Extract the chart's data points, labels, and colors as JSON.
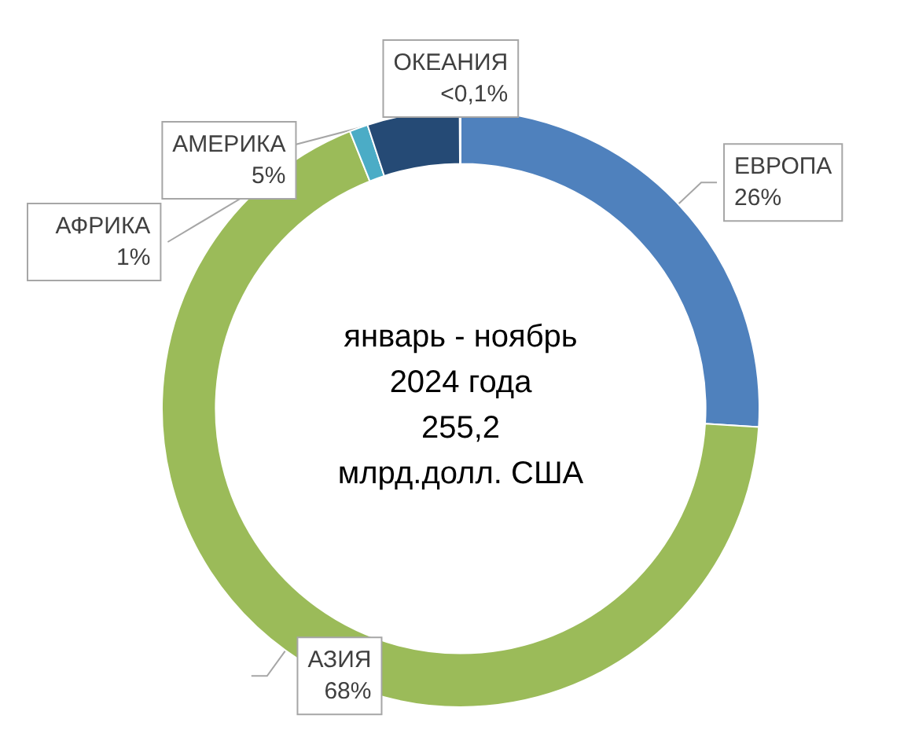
{
  "chart_data": {
    "type": "donut",
    "categories": [
      "ЕВРОПА",
      "АЗИЯ",
      "АФРИКА",
      "АМЕРИКА",
      "ОКЕАНИЯ"
    ],
    "values": [
      26,
      68,
      1,
      5,
      0.05
    ],
    "value_labels": [
      "26%",
      "68%",
      "1%",
      "5%",
      "<0,1%"
    ],
    "colors": [
      "#4f81bd",
      "#9bbb59",
      "#4bacc6",
      "#254a75",
      "#8eb4e3"
    ],
    "annotations": [
      "январь - ноябрь",
      "2024 года",
      "255,2",
      "млрд.долл. США"
    ],
    "legend": false
  }
}
